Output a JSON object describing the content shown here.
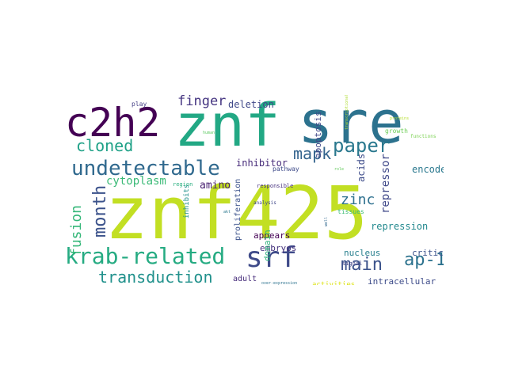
{
  "words": [
    {
      "text": "znf425",
      "color": "#c2df23",
      "rotate": 0
    },
    {
      "text": "sre",
      "color": "#2c728e",
      "rotate": 0
    },
    {
      "text": "znf",
      "color": "#22a884",
      "rotate": 0
    },
    {
      "text": "c2h2",
      "color": "#440154",
      "rotate": 0
    },
    {
      "text": "srf",
      "color": "#3e4a89",
      "rotate": 0
    },
    {
      "text": "krab-related",
      "color": "#25ab82",
      "rotate": 0
    },
    {
      "text": "undetectable",
      "color": "#30698e",
      "rotate": 0
    },
    {
      "text": "paper",
      "color": "#2a788e",
      "rotate": 0
    },
    {
      "text": "main",
      "color": "#3b528b",
      "rotate": 0
    },
    {
      "text": "transduction",
      "color": "#21918c",
      "rotate": 0
    },
    {
      "text": "month",
      "color": "#3b528b",
      "rotate": 270
    },
    {
      "text": "ap-1",
      "color": "#2c728e",
      "rotate": 0
    },
    {
      "text": "mapk",
      "color": "#33638d",
      "rotate": 0
    },
    {
      "text": "cloned",
      "color": "#1fa187",
      "rotate": 0
    },
    {
      "text": "fusion",
      "color": "#35b779",
      "rotate": 270
    },
    {
      "text": "finger",
      "color": "#453581",
      "rotate": 0
    },
    {
      "text": "zinc",
      "color": "#2d708e",
      "rotate": 0
    },
    {
      "text": "cytoplasm",
      "color": "#3aba76",
      "rotate": 0
    },
    {
      "text": "amino",
      "color": "#481f70",
      "rotate": 0
    },
    {
      "text": "repressor",
      "color": "#3f4889",
      "rotate": 270
    },
    {
      "text": "acids",
      "color": "#3e4c8a",
      "rotate": 270
    },
    {
      "text": "apoptosis",
      "color": "#3f4788",
      "rotate": 270
    },
    {
      "text": "inhibitor",
      "color": "#472c7a",
      "rotate": 0
    },
    {
      "text": "deletion",
      "color": "#3f4788",
      "rotate": 0
    },
    {
      "text": "encodes",
      "color": "#2a788e",
      "rotate": 0
    },
    {
      "text": "characterized",
      "color": "#1f9e89",
      "rotate": 270
    },
    {
      "text": "repression",
      "color": "#23898e",
      "rotate": 0
    },
    {
      "text": "appears",
      "color": "#440154",
      "rotate": 0
    },
    {
      "text": "embryos",
      "color": "#46337e",
      "rotate": 0
    },
    {
      "text": "nucleus",
      "color": "#277f8e",
      "rotate": 0
    },
    {
      "text": "critical",
      "color": "#3b528b",
      "rotate": 0
    },
    {
      "text": "intracellular",
      "color": "#3e4c8a",
      "rotate": 0
    },
    {
      "text": "domain",
      "color": "#2db27d",
      "rotate": 270
    },
    {
      "text": "proliferation",
      "color": "#3b528b",
      "rotate": 270
    },
    {
      "text": "inhibits",
      "color": "#21918c",
      "rotate": 270
    },
    {
      "text": "adult",
      "color": "#472d7b",
      "rotate": 0
    },
    {
      "text": "activities",
      "color": "#dde318",
      "rotate": 0
    },
    {
      "text": "play",
      "color": "#433e85",
      "rotate": 0
    },
    {
      "text": "pathway",
      "color": "#3e4a89",
      "rotate": 0
    },
    {
      "text": "responsible",
      "color": "#46307e",
      "rotate": 0
    },
    {
      "text": "region",
      "color": "#29af7f",
      "rotate": 0
    },
    {
      "text": "analysis",
      "color": "#3f4788",
      "rotate": 0
    },
    {
      "text": "tissues",
      "color": "#3dbc74",
      "rotate": 0
    },
    {
      "text": "signal",
      "color": "#414487",
      "rotate": 0
    },
    {
      "text": "growth",
      "color": "#6ece58",
      "rotate": 0
    },
    {
      "text": "functions",
      "color": "#7ad151",
      "rotate": 0
    },
    {
      "text": "over-expression",
      "color": "#2c728e",
      "rotate": 0
    },
    {
      "text": "transcriptional",
      "color": "#addc30",
      "rotate": 270
    },
    {
      "text": "human",
      "color": "#5ec962",
      "rotate": 0
    },
    {
      "text": "proteins",
      "color": "#b5de2b",
      "rotate": 0
    },
    {
      "text": "role",
      "color": "#65cb5e",
      "rotate": 0
    },
    {
      "text": "akt",
      "color": "#2a788e",
      "rotate": 0
    },
    {
      "text": "well",
      "color": "#31688e",
      "rotate": 270
    }
  ]
}
